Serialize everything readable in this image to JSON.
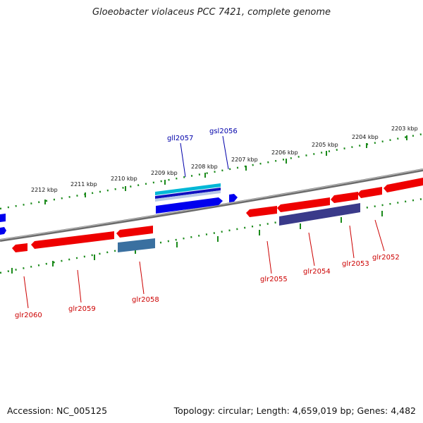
{
  "title": "Gloeobacter violaceus PCC 7421, complete genome",
  "footer": {
    "accession": "Accession: NC_005125",
    "topology": "Topology: circular; Length: 4,659,019 bp; Genes: 4,482"
  },
  "colors": {
    "forward_gene": "#0000ee",
    "reverse_gene": "#ee0000",
    "forward_label": "#0000aa",
    "reverse_label": "#cc0000",
    "backbone": "#808080",
    "ruler_ticks": "#1a8a1a",
    "rna_gene": "#00aacc",
    "pseudo_gene_dark": "#3a3a8a",
    "pseudo_gene_light": "#3a70a0"
  },
  "ruler_labels": [
    "2212 kbp",
    "2211 kbp",
    "2210 kbp",
    "2209 kbp",
    "2208 kbp",
    "2207 kbp",
    "2206 kbp",
    "2205 kbp",
    "2204 kbp",
    "2203 kbp"
  ],
  "forward_labels": [
    "gll2057",
    "gsl2056"
  ],
  "reverse_labels": [
    "glr2060",
    "glr2059",
    "glr2058",
    "glr2055",
    "glr2054",
    "glr2053",
    "glr2052"
  ]
}
